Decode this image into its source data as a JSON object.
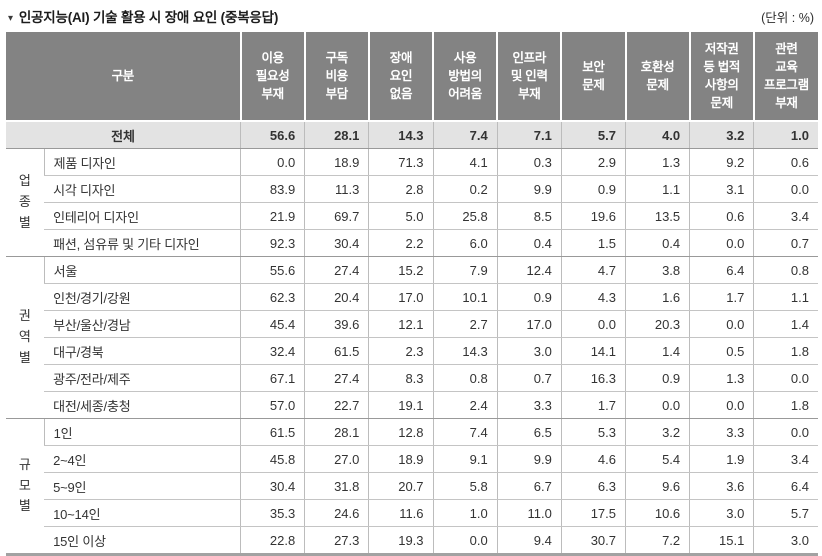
{
  "chart_data": {
    "type": "table",
    "marker": "▾",
    "title": "인공지능(AI) 기술 활용 시 장애 요인 (중복응답)",
    "unit_label": "(단위 : %)",
    "corner_header": "구분",
    "columns": [
      "이용\n필요성\n부재",
      "구독\n비용\n부담",
      "장애\n요인\n없음",
      "사용\n방법의\n어려움",
      "인프라\n및 인력\n부재",
      "보안\n문제",
      "호환성\n문제",
      "저작권\n등 법적\n사항의\n문제",
      "관련\n교육\n프로그램\n부재"
    ],
    "total_row": {
      "label": "전체",
      "values": [
        "56.6",
        "28.1",
        "14.3",
        "7.4",
        "7.1",
        "5.7",
        "4.0",
        "3.2",
        "1.0"
      ]
    },
    "groups": [
      {
        "label": "업종별",
        "rows": [
          {
            "label": "제품 디자인",
            "values": [
              "0.0",
              "18.9",
              "71.3",
              "4.1",
              "0.3",
              "2.9",
              "1.3",
              "9.2",
              "0.6"
            ]
          },
          {
            "label": "시각 디자인",
            "values": [
              "83.9",
              "11.3",
              "2.8",
              "0.2",
              "9.9",
              "0.9",
              "1.1",
              "3.1",
              "0.0"
            ]
          },
          {
            "label": "인테리어 디자인",
            "values": [
              "21.9",
              "69.7",
              "5.0",
              "25.8",
              "8.5",
              "19.6",
              "13.5",
              "0.6",
              "3.4"
            ]
          },
          {
            "label": "패션, 섬유류 및 기타 디자인",
            "values": [
              "92.3",
              "30.4",
              "2.2",
              "6.0",
              "0.4",
              "1.5",
              "0.4",
              "0.0",
              "0.7"
            ]
          }
        ]
      },
      {
        "label": "권역별",
        "rows": [
          {
            "label": "서울",
            "values": [
              "55.6",
              "27.4",
              "15.2",
              "7.9",
              "12.4",
              "4.7",
              "3.8",
              "6.4",
              "0.8"
            ]
          },
          {
            "label": "인천/경기/강원",
            "values": [
              "62.3",
              "20.4",
              "17.0",
              "10.1",
              "0.9",
              "4.3",
              "1.6",
              "1.7",
              "1.1"
            ]
          },
          {
            "label": "부산/울산/경남",
            "values": [
              "45.4",
              "39.6",
              "12.1",
              "2.7",
              "17.0",
              "0.0",
              "20.3",
              "0.0",
              "1.4"
            ]
          },
          {
            "label": "대구/경북",
            "values": [
              "32.4",
              "61.5",
              "2.3",
              "14.3",
              "3.0",
              "14.1",
              "1.4",
              "0.5",
              "1.8"
            ]
          },
          {
            "label": "광주/전라/제주",
            "values": [
              "67.1",
              "27.4",
              "8.3",
              "0.8",
              "0.7",
              "16.3",
              "0.9",
              "1.3",
              "0.0"
            ]
          },
          {
            "label": "대전/세종/충청",
            "values": [
              "57.0",
              "22.7",
              "19.1",
              "2.4",
              "3.3",
              "1.7",
              "0.0",
              "0.0",
              "1.8"
            ]
          }
        ]
      },
      {
        "label": "규모별",
        "rows": [
          {
            "label": "1인",
            "values": [
              "61.5",
              "28.1",
              "12.8",
              "7.4",
              "6.5",
              "5.3",
              "3.2",
              "3.3",
              "0.0"
            ]
          },
          {
            "label": "2~4인",
            "values": [
              "45.8",
              "27.0",
              "18.9",
              "9.1",
              "9.9",
              "4.6",
              "5.4",
              "1.9",
              "3.4"
            ]
          },
          {
            "label": "5~9인",
            "values": [
              "30.4",
              "31.8",
              "20.7",
              "5.8",
              "6.7",
              "6.3",
              "9.6",
              "3.6",
              "6.4"
            ]
          },
          {
            "label": "10~14인",
            "values": [
              "35.3",
              "24.6",
              "11.6",
              "1.0",
              "11.0",
              "17.5",
              "10.6",
              "3.0",
              "5.7"
            ]
          },
          {
            "label": "15인 이상",
            "values": [
              "22.8",
              "27.3",
              "19.3",
              "0.0",
              "9.4",
              "30.7",
              "7.2",
              "15.1",
              "3.0"
            ]
          }
        ]
      }
    ],
    "layout": {
      "colors": {
        "header_bg": "#838383",
        "header_text": "#ffffff",
        "total_row_bg": "#e3e3e3",
        "body_text": "#333333",
        "grid_line": "#c4c4c4",
        "group_line": "#999999"
      }
    }
  }
}
